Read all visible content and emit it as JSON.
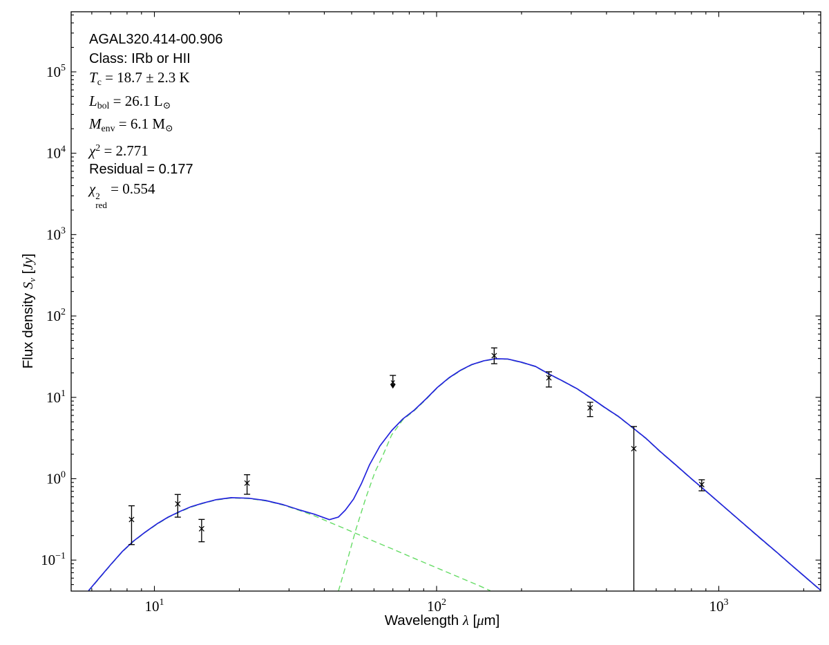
{
  "figure_title": "SED fit plot",
  "annotation": {
    "source_name": "AGAL320.414-00.906",
    "class_line": "Class: IRb or HII",
    "tc": {
      "sym": "T",
      "sub": "c",
      "rest": " = 18.7 ± 2.3 K"
    },
    "lbol": {
      "sym": "L",
      "sub": "bol",
      "rest": " = 26.1 L",
      "sun": "⊙"
    },
    "menv": {
      "sym": "M",
      "sub": "env",
      "rest": " = 6.1 M",
      "sun": "⊙"
    },
    "chi2": {
      "sym": "χ",
      "sup": "2",
      "rest": " = 2.771"
    },
    "residual": "Residual = 0.177",
    "chi2red": {
      "sym": "χ",
      "sup": "2",
      "sub": "red",
      "rest": " = 0.554"
    }
  },
  "labels": {
    "x": {
      "prefix": "Wavelength ",
      "lambda": "λ",
      "bracket_open": " [",
      "mu": "μ",
      "suffix": "m]"
    },
    "y": {
      "prefix": "Flux density ",
      "s": "S",
      "nu": "ν",
      "bracket_open": " [",
      "jy": "Jy",
      "suffix": "]"
    }
  },
  "colors": {
    "frame": "#000000",
    "total_model": "#2222dd",
    "components": "#66dc66",
    "data": "#000000",
    "background": "#ffffff"
  },
  "chart_data": {
    "type": "line",
    "title": "",
    "xlabel": "Wavelength λ [μm]",
    "ylabel": "Flux density Sν [Jy]",
    "x_scale": "log",
    "y_scale": "log",
    "xlim": [
      5.07,
      2297
    ],
    "ylim": [
      0.0416,
      548000
    ],
    "x_major_ticks": [
      10,
      100,
      1000
    ],
    "y_major_ticks": [
      0.1,
      1,
      10,
      100,
      1000,
      10000,
      100000
    ],
    "grid": false,
    "legend": false,
    "series": [
      {
        "name": "total model fit",
        "style": "solid",
        "color": "#2222dd",
        "points": [
          [
            5.84,
            0.042
          ],
          [
            6.35,
            0.059
          ],
          [
            6.99,
            0.0875
          ],
          [
            7.69,
            0.127
          ],
          [
            8.41,
            0.17
          ],
          [
            9.26,
            0.22
          ],
          [
            10.2,
            0.278
          ],
          [
            11.2,
            0.338
          ],
          [
            12.3,
            0.395
          ],
          [
            13.5,
            0.453
          ],
          [
            14.8,
            0.5
          ],
          [
            16.5,
            0.551
          ],
          [
            18.7,
            0.585
          ],
          [
            21.6,
            0.576
          ],
          [
            24.8,
            0.54
          ],
          [
            28.6,
            0.48
          ],
          [
            32.9,
            0.41
          ],
          [
            36.9,
            0.366
          ],
          [
            41.7,
            0.314
          ],
          [
            44.9,
            0.338
          ],
          [
            47.5,
            0.411
          ],
          [
            50.8,
            0.562
          ],
          [
            54.1,
            0.864
          ],
          [
            57.9,
            1.49
          ],
          [
            63.0,
            2.53
          ],
          [
            69.3,
            3.9
          ],
          [
            75.9,
            5.43
          ],
          [
            83.5,
            7.01
          ],
          [
            91.8,
            9.59
          ],
          [
            100.5,
            13.2
          ],
          [
            110.7,
            17.4
          ],
          [
            121.8,
            21.6
          ],
          [
            133.3,
            25.3
          ],
          [
            146.9,
            28.1
          ],
          [
            161,
            29.8
          ],
          [
            178.6,
            29.6
          ],
          [
            200,
            27.0
          ],
          [
            224,
            24.0
          ],
          [
            250,
            19.4
          ],
          [
            280,
            15.9
          ],
          [
            314,
            12.8
          ],
          [
            351,
            9.95
          ],
          [
            393,
            7.57
          ],
          [
            440,
            5.86
          ],
          [
            493,
            4.29
          ],
          [
            552,
            3.13
          ],
          [
            620,
            2.16
          ],
          [
            700,
            1.5
          ],
          [
            800,
            1.0
          ],
          [
            900,
            0.705
          ],
          [
            1000,
            0.514
          ],
          [
            1200,
            0.297
          ],
          [
            1400,
            0.187
          ],
          [
            1600,
            0.126
          ],
          [
            1800,
            0.0882
          ],
          [
            2000,
            0.0643
          ],
          [
            2297,
            0.0425
          ]
        ]
      },
      {
        "name": "cold component (dashed)",
        "style": "dashed",
        "color": "#66dc66",
        "points": [
          [
            44.9,
            0.0416
          ],
          [
            48.3,
            0.1
          ],
          [
            51.7,
            0.235
          ],
          [
            56.2,
            0.59
          ],
          [
            60.5,
            1.21
          ],
          [
            63.9,
            1.79
          ],
          [
            69.3,
            3.45
          ],
          [
            75.9,
            5.3
          ],
          [
            83.5,
            6.9
          ],
          [
            91.8,
            9.45
          ],
          [
            100.5,
            13.1
          ],
          [
            110.7,
            17.2
          ],
          [
            121.8,
            21.4
          ],
          [
            133.3,
            25.1
          ],
          [
            146.9,
            27.9
          ],
          [
            161,
            29.6
          ],
          [
            178.6,
            29.4
          ],
          [
            200,
            26.8
          ],
          [
            224,
            23.8
          ],
          [
            250,
            19.25
          ],
          [
            280,
            15.75
          ],
          [
            314,
            12.7
          ],
          [
            351,
            9.87
          ],
          [
            393,
            7.51
          ],
          [
            440,
            5.81
          ],
          [
            493,
            4.26
          ],
          [
            552,
            3.11
          ],
          [
            620,
            2.14
          ],
          [
            700,
            1.49
          ],
          [
            800,
            0.99
          ],
          [
            900,
            0.7
          ],
          [
            1000,
            0.51
          ],
          [
            1200,
            0.295
          ],
          [
            1400,
            0.185
          ],
          [
            1600,
            0.125
          ],
          [
            1800,
            0.0875
          ],
          [
            2000,
            0.0638
          ],
          [
            2297,
            0.0421
          ]
        ]
      },
      {
        "name": "warm component (dashed)",
        "style": "dashed",
        "color": "#66dc66",
        "points": [
          [
            5.84,
            0.0414
          ],
          [
            6.35,
            0.0585
          ],
          [
            6.99,
            0.0867
          ],
          [
            7.69,
            0.126
          ],
          [
            8.41,
            0.168
          ],
          [
            9.26,
            0.218
          ],
          [
            10.2,
            0.275
          ],
          [
            11.2,
            0.335
          ],
          [
            12.3,
            0.391
          ],
          [
            13.5,
            0.448
          ],
          [
            14.8,
            0.495
          ],
          [
            16.5,
            0.546
          ],
          [
            18.7,
            0.579
          ],
          [
            21.6,
            0.57
          ],
          [
            24.8,
            0.534
          ],
          [
            28.6,
            0.474
          ],
          [
            32.9,
            0.404
          ],
          [
            36.9,
            0.35
          ],
          [
            41.7,
            0.292
          ],
          [
            47.5,
            0.242
          ],
          [
            51.7,
            0.213
          ],
          [
            60.0,
            0.17
          ],
          [
            70.0,
            0.136
          ],
          [
            85.0,
            0.102
          ],
          [
            100,
            0.0805
          ],
          [
            120,
            0.0617
          ],
          [
            140,
            0.0492
          ],
          [
            155,
            0.0421
          ]
        ]
      }
    ],
    "data_points": [
      {
        "wavelength_um": 8.3,
        "flux_jy": 0.315,
        "flux_upper_jy": 0.465,
        "flux_lower_jy": 0.155
      },
      {
        "wavelength_um": 12.1,
        "flux_jy": 0.49,
        "flux_upper_jy": 0.64,
        "flux_lower_jy": 0.337
      },
      {
        "wavelength_um": 14.7,
        "flux_jy": 0.243,
        "flux_upper_jy": 0.316,
        "flux_lower_jy": 0.168
      },
      {
        "wavelength_um": 21.3,
        "flux_jy": 0.883,
        "flux_upper_jy": 1.12,
        "flux_lower_jy": 0.644
      },
      {
        "wavelength_um": 70,
        "flux_jy": 15.3,
        "flux_upper_jy": 18.6,
        "flux_lower_jy": 12.9,
        "upper_limit": true
      },
      {
        "wavelength_um": 160,
        "flux_jy": 32.5,
        "flux_upper_jy": 40.5,
        "flux_lower_jy": 25.9
      },
      {
        "wavelength_um": 250,
        "flux_jy": 17.4,
        "flux_upper_jy": 20.6,
        "flux_lower_jy": 13.4
      },
      {
        "wavelength_um": 350,
        "flux_jy": 7.43,
        "flux_upper_jy": 8.7,
        "flux_lower_jy": 5.8
      },
      {
        "wavelength_um": 500,
        "flux_jy": 2.34,
        "flux_upper_jy": 4.38,
        "flux_lower_jy": 0.0416,
        "lower_uncapped": true
      },
      {
        "wavelength_um": 870,
        "flux_jy": 0.847,
        "flux_upper_jy": 0.971,
        "flux_lower_jy": 0.71
      }
    ]
  }
}
